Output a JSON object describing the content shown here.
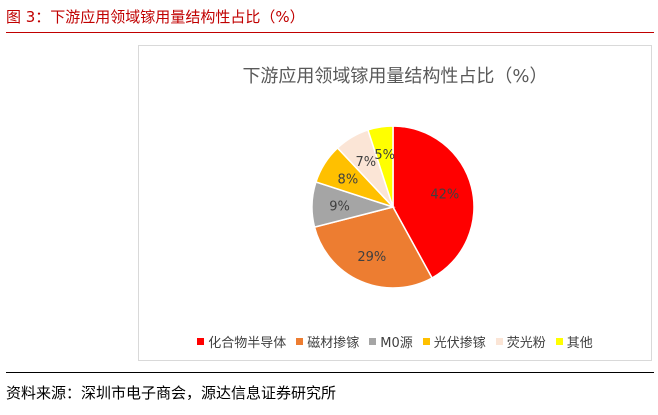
{
  "figure_caption": "图 3：下游应用领域镓用量结构性占比（%）",
  "source_note": "资料来源：深圳市电子商会，源达信息证券研究所",
  "chart_data": {
    "type": "pie",
    "title": "下游应用领域镓用量结构性占比（%）",
    "categories": [
      "化合物半导体",
      "磁材掺镓",
      "M0源",
      "光伏掺镓",
      "荧光粉",
      "其他"
    ],
    "values": [
      42,
      29,
      9,
      8,
      7,
      5
    ],
    "labels": [
      "42%",
      "29%",
      "9%",
      "8%",
      "7%",
      "5%"
    ],
    "colors": [
      "#ff0000",
      "#ed7d31",
      "#a5a5a5",
      "#ffc000",
      "#fbe5d6",
      "#ffff00"
    ],
    "legend_position": "bottom"
  }
}
